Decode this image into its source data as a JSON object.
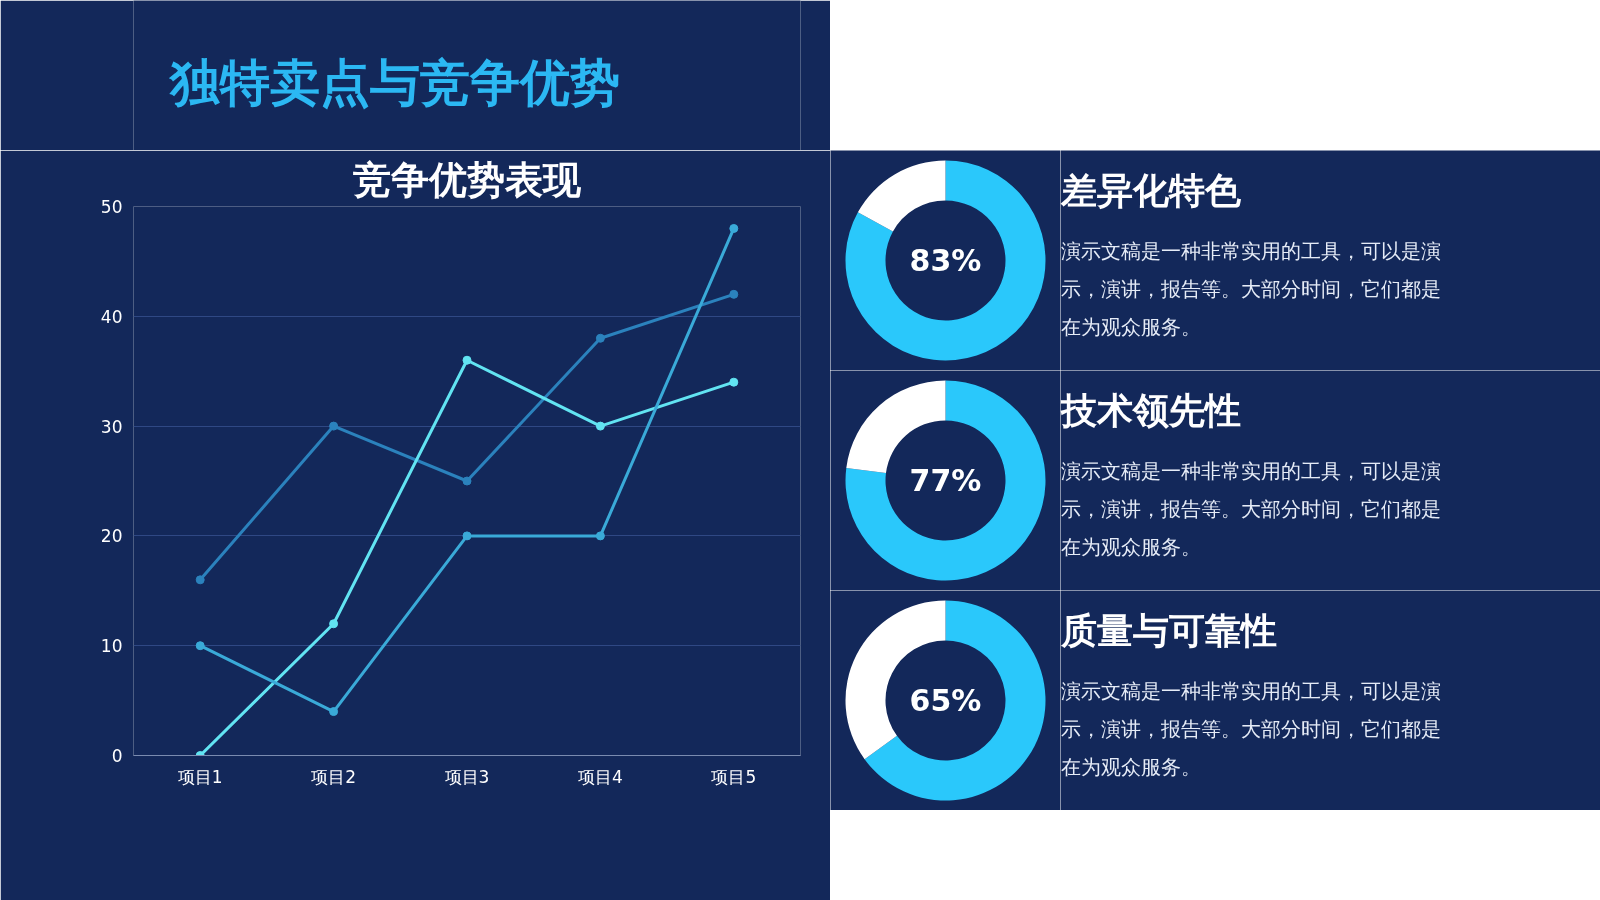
{
  "chart_data": [
    {
      "type": "other",
      "title": "独特卖点与竞争优势"
    },
    {
      "type": "line",
      "title": "竞争优势表现",
      "categories": [
        "项目1",
        "项目2",
        "项目3",
        "项目4",
        "项目5"
      ],
      "series": [
        {
          "color": "#2b82bd",
          "values": [
            16,
            30,
            25,
            38,
            42
          ]
        },
        {
          "color": "#62e4f2",
          "values": [
            0,
            12,
            36,
            30,
            34
          ]
        },
        {
          "color": "#3aaad8",
          "values": [
            10,
            4,
            20,
            20,
            48
          ]
        }
      ],
      "ylim": [
        0,
        50
      ],
      "yticks": [
        0,
        10,
        20,
        30,
        40,
        50
      ],
      "grid": "y",
      "marker": "circle"
    },
    {
      "type": "donut",
      "title": "差异化特色",
      "categories": [
        null,
        null
      ],
      "values": [
        83,
        17
      ],
      "colors": [
        "#2ac8fb",
        "#ffffff"
      ],
      "value_labels": [
        "83%",
        null
      ],
      "annotations": [
        "演示文稿是一种非常实用的工具，可以是演示，演讲，报告等。大部分时间，它们都是在为观众服务。"
      ]
    },
    {
      "type": "donut",
      "title": "技术领先性",
      "categories": [
        null,
        null
      ],
      "values": [
        77,
        23
      ],
      "colors": [
        "#2ac8fb",
        "#ffffff"
      ],
      "value_labels": [
        "77%",
        null
      ],
      "annotations": [
        "演示文稿是一种非常实用的工具，可以是演示，演讲，报告等。大部分时间，它们都是在为观众服务。"
      ]
    },
    {
      "type": "donut",
      "title": "质量与可靠性",
      "categories": [
        null,
        null
      ],
      "values": [
        65,
        35
      ],
      "colors": [
        "#2ac8fb",
        "#ffffff"
      ],
      "value_labels": [
        "65%",
        null
      ],
      "annotations": [
        "演示文稿是一种非常实用的工具，可以是演示，演讲，报告等。大部分时间，它们都是在为观众服务。"
      ]
    }
  ]
}
